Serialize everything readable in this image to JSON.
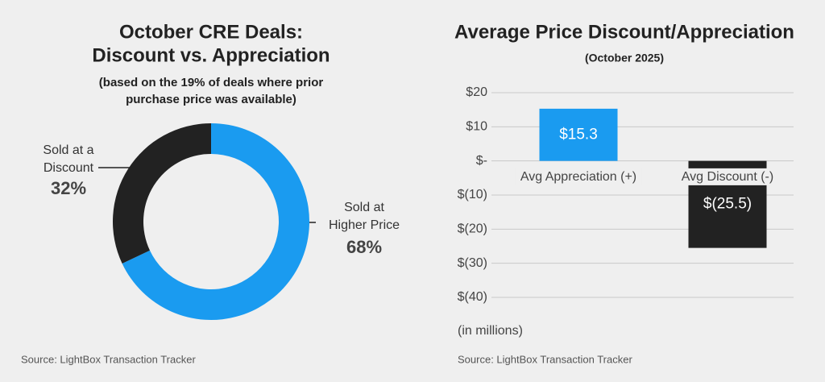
{
  "chart_data": [
    {
      "type": "donut",
      "title": [
        "October CRE Deals:",
        "Discount vs. Appreciation"
      ],
      "subtitle": [
        "(based on the 19% of deals where prior",
        "purchase price was available)"
      ],
      "categories": [
        "Sold at a Discount",
        "Sold at Higher Price"
      ],
      "values": [
        32,
        68
      ],
      "value_labels": [
        "32%",
        "68%"
      ],
      "colors": [
        "#222222",
        "#1a9bf0"
      ],
      "source": "Source: LightBox Transaction Tracker"
    },
    {
      "type": "bar",
      "title": "Average Price Discount/Appreciation",
      "subtitle": "(October 2025)",
      "categories": [
        "Avg Appreciation (+)",
        "Avg Discount (-)"
      ],
      "values": [
        15.3,
        -25.5
      ],
      "value_labels": [
        "$15.3",
        "$(25.5)"
      ],
      "colors": [
        "#1a9bf0",
        "#222222"
      ],
      "ylim": [
        -40,
        20
      ],
      "yticks": [
        {
          "value": 20,
          "label": "$20"
        },
        {
          "value": 10,
          "label": "$10"
        },
        {
          "value": 0,
          "label": "$-"
        },
        {
          "value": -10,
          "label": "$(10)"
        },
        {
          "value": -20,
          "label": "$(20)"
        },
        {
          "value": -30,
          "label": "$(30)"
        },
        {
          "value": -40,
          "label": "$(40)"
        }
      ],
      "grid": true,
      "note": "(in millions)",
      "source": "Source: LightBox Transaction Tracker"
    }
  ]
}
